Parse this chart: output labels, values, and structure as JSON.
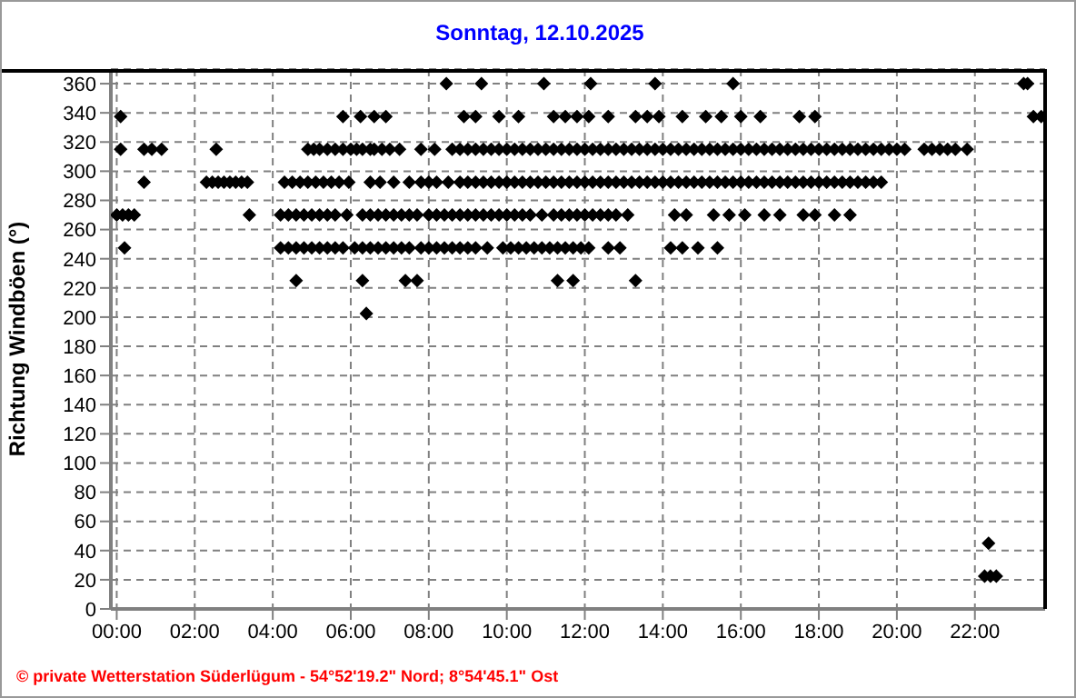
{
  "chart_data": {
    "type": "scatter",
    "title": "Sonntag, 12.10.2025",
    "ylabel": "Richtung Windböen (°)",
    "annotations": [
      "© private Wetterstation Süderlügum - 54°52'19.2\" Nord; 8°54'45.1\" Ost"
    ],
    "xlim": [
      -0.15,
      23.8
    ],
    "xticks": [
      {
        "value": 0,
        "label": "00:00"
      },
      {
        "value": 2,
        "label": "02:00"
      },
      {
        "value": 4,
        "label": "04:00"
      },
      {
        "value": 6,
        "label": "06:00"
      },
      {
        "value": 8,
        "label": "08:00"
      },
      {
        "value": 10,
        "label": "10:00"
      },
      {
        "value": 12,
        "label": "12:00"
      },
      {
        "value": 14,
        "label": "14:00"
      },
      {
        "value": 16,
        "label": "16:00"
      },
      {
        "value": 18,
        "label": "18:00"
      },
      {
        "value": 20,
        "label": "20:00"
      },
      {
        "value": 22,
        "label": "22:00"
      }
    ],
    "ylim": [
      0,
      370
    ],
    "yticks": [
      0,
      20,
      40,
      60,
      80,
      100,
      120,
      140,
      160,
      180,
      200,
      220,
      240,
      260,
      280,
      300,
      320,
      340,
      360
    ],
    "grid": true,
    "marker": "diamond",
    "legend": false,
    "series": [
      {
        "color": "#000000",
        "x": [
          8.45,
          9.35,
          10.95,
          12.15,
          13.8,
          15.8,
          23.25,
          23.35
        ],
        "values": [
          360,
          360,
          360,
          360,
          360,
          360,
          360,
          360
        ]
      },
      {
        "color": "#000000",
        "x": [
          0.1,
          5.8,
          6.25,
          6.6,
          6.9,
          8.9,
          9.2,
          9.8,
          10.3,
          11.2,
          11.5,
          11.8,
          12.1,
          12.6,
          13.3,
          13.6,
          13.9,
          14.5,
          15.1,
          15.5,
          16.0,
          16.5,
          17.5,
          17.9,
          23.5,
          23.7
        ],
        "values": [
          337.5,
          337.5,
          337.5,
          337.5,
          337.5,
          337.5,
          337.5,
          337.5,
          337.5,
          337.5,
          337.5,
          337.5,
          337.5,
          337.5,
          337.5,
          337.5,
          337.5,
          337.5,
          337.5,
          337.5,
          337.5,
          337.5,
          337.5,
          337.5,
          337.5,
          337.5
        ]
      },
      {
        "color": "#000000",
        "x": [
          0.1,
          0.7,
          0.9,
          1.15,
          2.55,
          4.9,
          5.05,
          5.2,
          5.4,
          5.6,
          5.8,
          6.0,
          6.15,
          6.3,
          6.5,
          6.6,
          6.8,
          7.0,
          7.25,
          7.8,
          8.15,
          8.6,
          8.8,
          9.0,
          9.2,
          9.4,
          9.6,
          9.8,
          10.0,
          10.2,
          10.4,
          10.6,
          10.8,
          11.0,
          11.2,
          11.4,
          11.6,
          11.8,
          12.0,
          12.2,
          12.4,
          12.6,
          12.8,
          13.0,
          13.2,
          13.4,
          13.6,
          13.8,
          14.0,
          14.2,
          14.4,
          14.6,
          14.8,
          15.0,
          15.2,
          15.4,
          15.6,
          15.8,
          16.0,
          16.2,
          16.4,
          16.6,
          16.8,
          17.0,
          17.2,
          17.4,
          17.6,
          17.8,
          18.0,
          18.2,
          18.4,
          18.6,
          18.8,
          19.0,
          19.2,
          19.4,
          19.6,
          19.8,
          20.0,
          20.2,
          20.7,
          20.9,
          21.1,
          21.3,
          21.5,
          21.8
        ],
        "values": [
          315,
          315,
          315,
          315,
          315,
          315,
          315,
          315,
          315,
          315,
          315,
          315,
          315,
          315,
          315,
          315,
          315,
          315,
          315,
          315,
          315,
          315,
          315,
          315,
          315,
          315,
          315,
          315,
          315,
          315,
          315,
          315,
          315,
          315,
          315,
          315,
          315,
          315,
          315,
          315,
          315,
          315,
          315,
          315,
          315,
          315,
          315,
          315,
          315,
          315,
          315,
          315,
          315,
          315,
          315,
          315,
          315,
          315,
          315,
          315,
          315,
          315,
          315,
          315,
          315,
          315,
          315,
          315,
          315,
          315,
          315,
          315,
          315,
          315,
          315,
          315,
          315,
          315,
          315,
          315,
          315,
          315,
          315,
          315,
          315,
          315
        ]
      },
      {
        "color": "#000000",
        "x": [
          0.7,
          2.3,
          2.45,
          2.6,
          2.75,
          2.9,
          3.05,
          3.2,
          3.35,
          4.3,
          4.5,
          4.7,
          4.9,
          5.1,
          5.3,
          5.5,
          5.7,
          5.95,
          6.5,
          6.75,
          7.1,
          7.5,
          7.8,
          8.0,
          8.2,
          8.5,
          8.8,
          9.0,
          9.2,
          9.4,
          9.6,
          9.8,
          10.0,
          10.2,
          10.4,
          10.6,
          10.8,
          11.0,
          11.2,
          11.4,
          11.6,
          11.8,
          12.0,
          12.2,
          12.4,
          12.6,
          12.8,
          13.0,
          13.2,
          13.4,
          13.6,
          13.8,
          14.0,
          14.2,
          14.4,
          14.6,
          14.8,
          15.0,
          15.2,
          15.4,
          15.6,
          15.8,
          16.0,
          16.2,
          16.4,
          16.6,
          16.8,
          17.0,
          17.2,
          17.4,
          17.6,
          17.8,
          18.0,
          18.2,
          18.4,
          18.6,
          18.8,
          19.0,
          19.2,
          19.4,
          19.6
        ],
        "values": [
          292.5,
          292.5,
          292.5,
          292.5,
          292.5,
          292.5,
          292.5,
          292.5,
          292.5,
          292.5,
          292.5,
          292.5,
          292.5,
          292.5,
          292.5,
          292.5,
          292.5,
          292.5,
          292.5,
          292.5,
          292.5,
          292.5,
          292.5,
          292.5,
          292.5,
          292.5,
          292.5,
          292.5,
          292.5,
          292.5,
          292.5,
          292.5,
          292.5,
          292.5,
          292.5,
          292.5,
          292.5,
          292.5,
          292.5,
          292.5,
          292.5,
          292.5,
          292.5,
          292.5,
          292.5,
          292.5,
          292.5,
          292.5,
          292.5,
          292.5,
          292.5,
          292.5,
          292.5,
          292.5,
          292.5,
          292.5,
          292.5,
          292.5,
          292.5,
          292.5,
          292.5,
          292.5,
          292.5,
          292.5,
          292.5,
          292.5,
          292.5,
          292.5,
          292.5,
          292.5,
          292.5,
          292.5,
          292.5,
          292.5,
          292.5,
          292.5,
          292.5,
          292.5,
          292.5,
          292.5,
          292.5
        ]
      },
      {
        "color": "#000000",
        "x": [
          0.0,
          0.15,
          0.3,
          0.45,
          3.4,
          4.2,
          4.4,
          4.6,
          4.8,
          5.0,
          5.2,
          5.4,
          5.6,
          5.9,
          6.3,
          6.5,
          6.7,
          6.9,
          7.1,
          7.3,
          7.5,
          7.7,
          8.0,
          8.2,
          8.4,
          8.6,
          8.8,
          9.0,
          9.2,
          9.4,
          9.6,
          9.8,
          10.0,
          10.2,
          10.4,
          10.6,
          10.9,
          11.2,
          11.4,
          11.6,
          11.8,
          12.0,
          12.2,
          12.4,
          12.6,
          12.8,
          13.1,
          14.3,
          14.6,
          15.3,
          15.7,
          16.1,
          16.6,
          17.0,
          17.6,
          17.9,
          18.4,
          18.8
        ],
        "values": [
          270,
          270,
          270,
          270,
          270,
          270,
          270,
          270,
          270,
          270,
          270,
          270,
          270,
          270,
          270,
          270,
          270,
          270,
          270,
          270,
          270,
          270,
          270,
          270,
          270,
          270,
          270,
          270,
          270,
          270,
          270,
          270,
          270,
          270,
          270,
          270,
          270,
          270,
          270,
          270,
          270,
          270,
          270,
          270,
          270,
          270,
          270,
          270,
          270,
          270,
          270,
          270,
          270,
          270,
          270,
          270,
          270,
          270
        ]
      },
      {
        "color": "#000000",
        "x": [
          0.2,
          4.2,
          4.4,
          4.6,
          4.8,
          5.0,
          5.2,
          5.4,
          5.6,
          5.8,
          6.1,
          6.3,
          6.5,
          6.7,
          6.9,
          7.1,
          7.3,
          7.5,
          7.8,
          8.0,
          8.2,
          8.4,
          8.6,
          8.8,
          9.0,
          9.2,
          9.5,
          9.9,
          10.1,
          10.3,
          10.5,
          10.7,
          10.9,
          11.1,
          11.3,
          11.5,
          11.7,
          11.9,
          12.1,
          12.6,
          12.9,
          14.2,
          14.5,
          14.9,
          15.4
        ],
        "values": [
          247.5,
          247.5,
          247.5,
          247.5,
          247.5,
          247.5,
          247.5,
          247.5,
          247.5,
          247.5,
          247.5,
          247.5,
          247.5,
          247.5,
          247.5,
          247.5,
          247.5,
          247.5,
          247.5,
          247.5,
          247.5,
          247.5,
          247.5,
          247.5,
          247.5,
          247.5,
          247.5,
          247.5,
          247.5,
          247.5,
          247.5,
          247.5,
          247.5,
          247.5,
          247.5,
          247.5,
          247.5,
          247.5,
          247.5,
          247.5,
          247.5,
          247.5,
          247.5,
          247.5,
          247.5
        ]
      },
      {
        "color": "#000000",
        "x": [
          4.6,
          6.3,
          7.4,
          7.7,
          11.3,
          11.7,
          13.3
        ],
        "values": [
          225,
          225,
          225,
          225,
          225,
          225,
          225
        ]
      },
      {
        "color": "#000000",
        "x": [
          6.4
        ],
        "values": [
          202.5
        ]
      },
      {
        "color": "#000000",
        "x": [
          22.35
        ],
        "values": [
          45
        ]
      },
      {
        "color": "#000000",
        "x": [
          22.25,
          22.4,
          22.55
        ],
        "values": [
          22.5,
          22.5,
          22.5
        ]
      }
    ]
  }
}
